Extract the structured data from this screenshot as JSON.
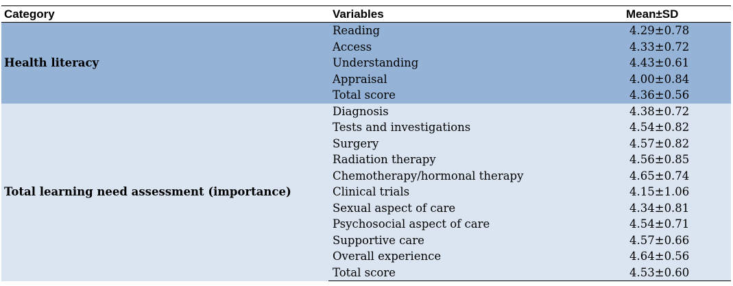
{
  "header": {
    "col_category": "Category",
    "col_variables": "Variables",
    "col_mean": "Mean±SD"
  },
  "groups": [
    {
      "category": "Health literacy",
      "rows": [
        {
          "variable": "Reading",
          "mean": "4.29±0.78"
        },
        {
          "variable": "Access",
          "mean": "4.33±0.72"
        },
        {
          "variable": "Understanding",
          "mean": "4.43±0.61"
        },
        {
          "variable": "Appraisal",
          "mean": "4.00±0.84"
        },
        {
          "variable": "Total score",
          "mean": "4.36±0.56"
        }
      ]
    },
    {
      "category": "Total learning need assessment (importance)",
      "rows": [
        {
          "variable": "Diagnosis",
          "mean": "4.38±0.72"
        },
        {
          "variable": "Tests and investigations",
          "mean": "4.54±0.82"
        },
        {
          "variable": "Surgery",
          "mean": "4.57±0.82"
        },
        {
          "variable": "Radiation therapy",
          "mean": "4.56±0.85"
        },
        {
          "variable": "Chemotherapy/hormonal therapy",
          "mean": "4.65±0.74"
        },
        {
          "variable": "Clinical trials",
          "mean": "4.15±1.06"
        },
        {
          "variable": "Sexual aspect of care",
          "mean": "4.34±0.81"
        },
        {
          "variable": "Psychosocial aspect of care",
          "mean": "4.54±0.71"
        },
        {
          "variable": "Supportive care",
          "mean": "4.57±0.66"
        },
        {
          "variable": "Overall experience",
          "mean": "4.64±0.56"
        },
        {
          "variable": "Total score",
          "mean": "4.53±0.60"
        }
      ]
    }
  ],
  "colors": {
    "group1_bg": "#95b3d7",
    "group2_bg": "#dbe5f1",
    "border": "#000000"
  }
}
